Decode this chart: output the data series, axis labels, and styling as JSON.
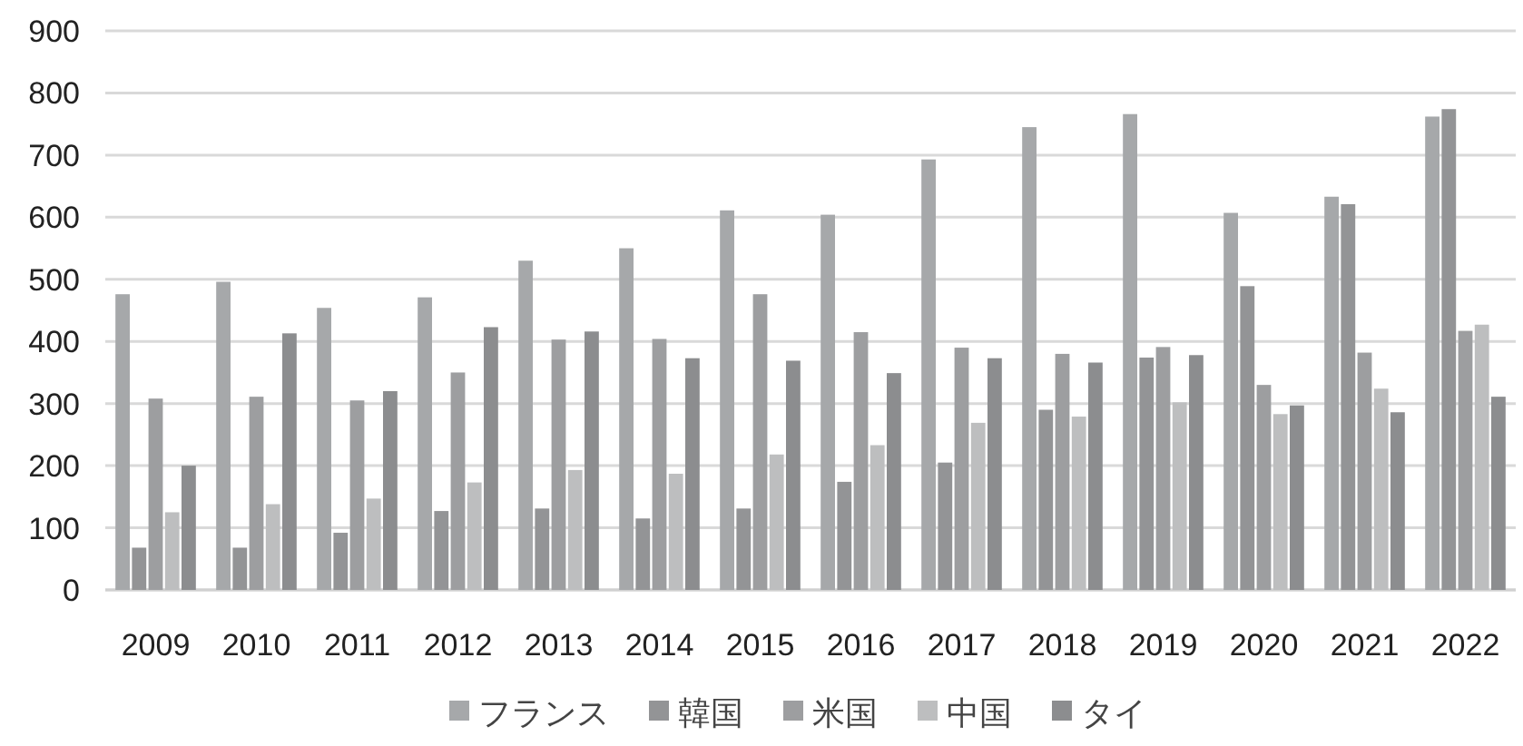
{
  "chart_data": {
    "type": "bar",
    "categories": [
      "2009",
      "2010",
      "2011",
      "2012",
      "2013",
      "2014",
      "2015",
      "2016",
      "2017",
      "2018",
      "2019",
      "2020",
      "2021",
      "2022"
    ],
    "series": [
      {
        "name": "フランス",
        "color": "#a6a8aa",
        "values": [
          476,
          496,
          454,
          471,
          530,
          550,
          611,
          604,
          693,
          745,
          766,
          607,
          633,
          762
        ]
      },
      {
        "name": "韓国",
        "color": "#939496",
        "values": [
          68,
          68,
          92,
          127,
          131,
          115,
          131,
          174,
          205,
          290,
          374,
          489,
          621,
          774
        ]
      },
      {
        "name": "米国",
        "color": "#9d9ea0",
        "values": [
          308,
          311,
          305,
          350,
          403,
          404,
          476,
          415,
          390,
          380,
          391,
          330,
          382,
          417
        ]
      },
      {
        "name": "中国",
        "color": "#bdbebf",
        "values": [
          125,
          138,
          147,
          173,
          193,
          187,
          218,
          233,
          269,
          279,
          302,
          283,
          324,
          427
        ]
      },
      {
        "name": "タイ",
        "color": "#8c8d8f",
        "values": [
          200,
          413,
          320,
          423,
          416,
          373,
          369,
          349,
          373,
          366,
          378,
          297,
          286,
          311
        ]
      }
    ],
    "ylim": [
      0,
      900
    ],
    "yticks": [
      0,
      100,
      200,
      300,
      400,
      500,
      600,
      700,
      800,
      900
    ],
    "grid": "y",
    "legend": "bottom"
  }
}
